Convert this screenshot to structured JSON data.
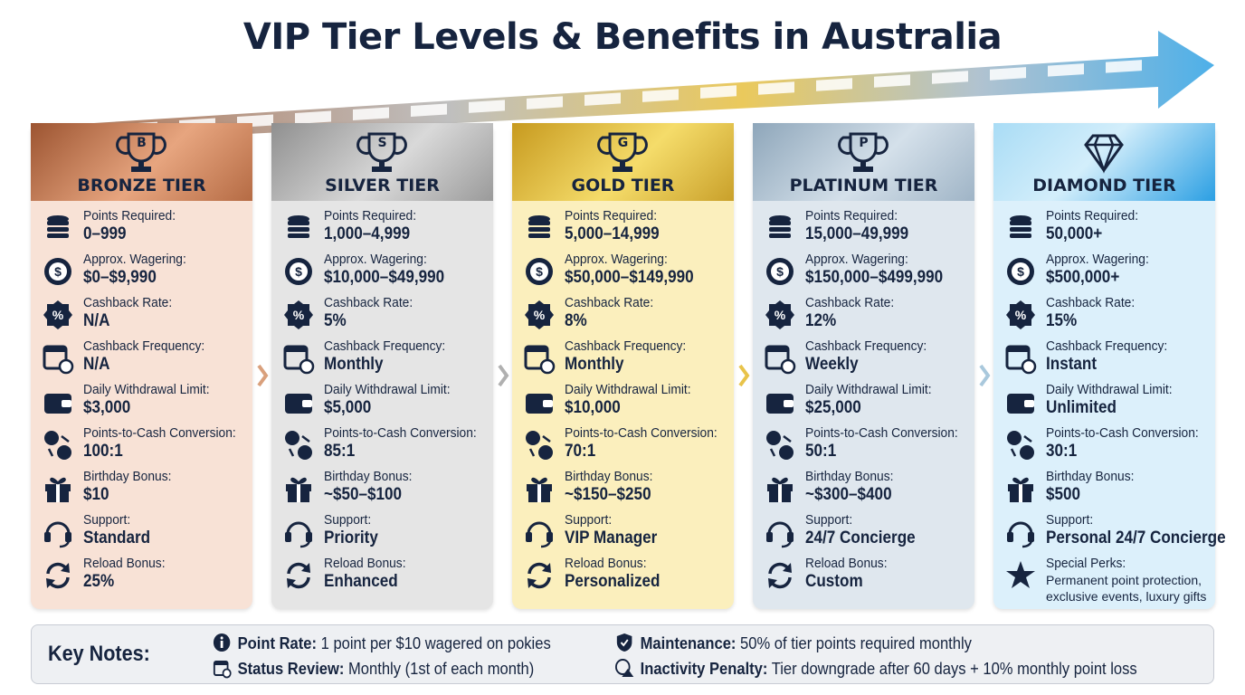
{
  "title": "VIP Tier Levels & Benefits in Australia",
  "tiers": [
    {
      "badge": "B",
      "name": "BRONZE TIER",
      "rows": [
        [
          "Points Required:",
          "0–999"
        ],
        [
          "Approx. Wagering:",
          "$0–$9,990"
        ],
        [
          "Cashback Rate:",
          "N/A"
        ],
        [
          "Cashback Frequency:",
          "N/A"
        ],
        [
          "Daily Withdrawal Limit:",
          "$3,000"
        ],
        [
          "Points-to-Cash Conversion:",
          "100:1"
        ],
        [
          "Birthday Bonus:",
          "$10"
        ],
        [
          "Support:",
          "Standard"
        ],
        [
          "Reload Bonus:",
          "25%"
        ]
      ]
    },
    {
      "badge": "S",
      "name": "SILVER TIER",
      "rows": [
        [
          "Points Required:",
          "1,000–4,999"
        ],
        [
          "Approx. Wagering:",
          "$10,000–$49,990"
        ],
        [
          "Cashback Rate:",
          "5%"
        ],
        [
          "Cashback Frequency:",
          "Monthly"
        ],
        [
          "Daily Withdrawal Limit:",
          "$5,000"
        ],
        [
          "Points-to-Cash Conversion:",
          "85:1"
        ],
        [
          "Birthday Bonus:",
          "~$50–$100"
        ],
        [
          "Support:",
          "Priority"
        ],
        [
          "Reload Bonus:",
          "Enhanced"
        ]
      ]
    },
    {
      "badge": "G",
      "name": "GOLD TIER",
      "rows": [
        [
          "Points Required:",
          "5,000–14,999"
        ],
        [
          "Approx. Wagering:",
          "$50,000–$149,990"
        ],
        [
          "Cashback Rate:",
          "8%"
        ],
        [
          "Cashback Frequency:",
          "Monthly"
        ],
        [
          "Daily Withdrawal Limit:",
          "$10,000"
        ],
        [
          "Points-to-Cash Conversion:",
          "70:1"
        ],
        [
          "Birthday Bonus:",
          "~$150–$250"
        ],
        [
          "Support:",
          "VIP Manager"
        ],
        [
          "Reload Bonus:",
          "Personalized"
        ]
      ]
    },
    {
      "badge": "P",
      "name": "PLATINUM TIER",
      "rows": [
        [
          "Points Required:",
          "15,000–49,999"
        ],
        [
          "Approx. Wagering:",
          "$150,000–$499,990"
        ],
        [
          "Cashback Rate:",
          "12%"
        ],
        [
          "Cashback Frequency:",
          "Weekly"
        ],
        [
          "Daily Withdrawal Limit:",
          "$25,000"
        ],
        [
          "Points-to-Cash Conversion:",
          "50:1"
        ],
        [
          "Birthday Bonus:",
          "~$300–$400"
        ],
        [
          "Support:",
          "24/7 Concierge"
        ],
        [
          "Reload Bonus:",
          "Custom"
        ]
      ]
    },
    {
      "name": "DIAMOND TIER",
      "rows": [
        [
          "Points Required:",
          "50,000+"
        ],
        [
          "Approx. Wagering:",
          "$500,000+"
        ],
        [
          "Cashback Rate:",
          "15%"
        ],
        [
          "Cashback Frequency:",
          "Instant"
        ],
        [
          "Daily Withdrawal Limit:",
          "Unlimited"
        ],
        [
          "Points-to-Cash Conversion:",
          "30:1"
        ],
        [
          "Birthday Bonus:",
          "$500"
        ],
        [
          "Support:",
          "Personal 24/7 Concierge"
        ],
        [
          "Special Perks:",
          "Permanent point protection, exclusive events, luxury gifts"
        ]
      ]
    }
  ],
  "key_notes": {
    "heading": "Key Notes:",
    "items": [
      {
        "label": "Point Rate:",
        "text": "1 point per $10 wagered on pokies"
      },
      {
        "label": "Maintenance:",
        "text": "50% of tier points required monthly"
      },
      {
        "label": "Status Review:",
        "text": "Monthly (1st of each month)"
      },
      {
        "label": "Inactivity Penalty:",
        "text": "Tier downgrade after 60 days + 10% monthly point loss"
      }
    ]
  }
}
